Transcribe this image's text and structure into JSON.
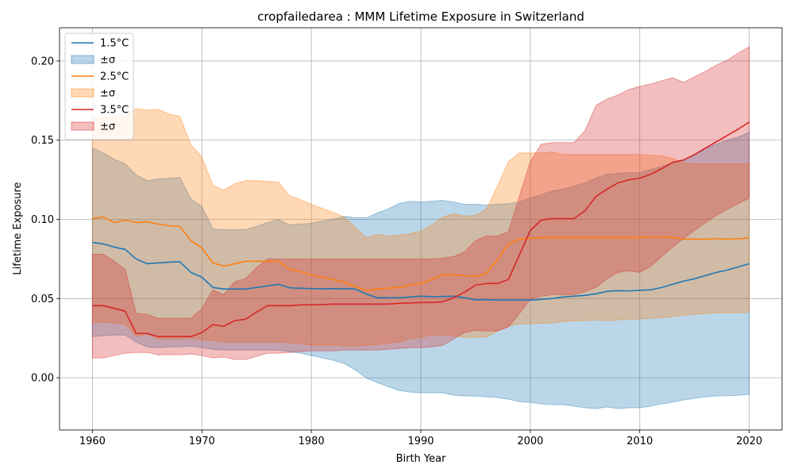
{
  "chart_data": {
    "type": "line",
    "title": "cropfailedarea : MMM Lifetime Exposure in Switzerland",
    "xlabel": "Birth Year",
    "ylabel": "Lifetime Exposure",
    "xlim": [
      1957,
      2023
    ],
    "ylim": [
      -0.033,
      0.221
    ],
    "xticks": [
      1960,
      1970,
      1980,
      1990,
      2000,
      2010,
      2020
    ],
    "xtick_labels": [
      "1960",
      "1970",
      "1980",
      "1990",
      "2000",
      "2010",
      "2020"
    ],
    "yticks": [
      0.0,
      0.05,
      0.1,
      0.15,
      0.2
    ],
    "ytick_labels": [
      "0.00",
      "0.05",
      "0.10",
      "0.15",
      "0.20"
    ],
    "grid": true,
    "legend_position": "top-left",
    "x": [
      1960,
      1961,
      1962,
      1963,
      1964,
      1965,
      1966,
      1967,
      1968,
      1969,
      1970,
      1971,
      1972,
      1973,
      1974,
      1975,
      1976,
      1977,
      1978,
      1979,
      1980,
      1981,
      1982,
      1983,
      1984,
      1985,
      1986,
      1987,
      1988,
      1989,
      1990,
      1991,
      1992,
      1993,
      1994,
      1995,
      1996,
      1997,
      1998,
      1999,
      2000,
      2001,
      2002,
      2003,
      2004,
      2005,
      2006,
      2007,
      2008,
      2009,
      2010,
      2011,
      2012,
      2013,
      2014,
      2015,
      2016,
      2017,
      2018,
      2019,
      2020
    ],
    "series": [
      {
        "name": "1.5°C",
        "band_label": "±σ",
        "color": "#1f77b4",
        "values": [
          0.0855,
          0.0845,
          0.0825,
          0.081,
          0.075,
          0.072,
          0.0725,
          0.073,
          0.0732,
          0.0665,
          0.0635,
          0.057,
          0.056,
          0.056,
          0.056,
          0.057,
          0.058,
          0.059,
          0.0568,
          0.0565,
          0.0563,
          0.0562,
          0.0563,
          0.0562,
          0.056,
          0.053,
          0.0505,
          0.0505,
          0.0505,
          0.051,
          0.0515,
          0.0512,
          0.0513,
          0.0515,
          0.0505,
          0.0492,
          0.0493,
          0.049,
          0.049,
          0.049,
          0.049,
          0.0495,
          0.05,
          0.051,
          0.0515,
          0.052,
          0.053,
          0.0545,
          0.055,
          0.0548,
          0.0552,
          0.0555,
          0.057,
          0.059,
          0.061,
          0.0625,
          0.0645,
          0.0665,
          0.068,
          0.07,
          0.072
        ],
        "upper": [
          0.145,
          0.142,
          0.138,
          0.135,
          0.128,
          0.1245,
          0.1255,
          0.126,
          0.1265,
          0.113,
          0.108,
          0.094,
          0.0935,
          0.0935,
          0.0935,
          0.0955,
          0.098,
          0.1,
          0.0965,
          0.097,
          0.0975,
          0.099,
          0.1,
          0.102,
          0.101,
          0.101,
          0.104,
          0.1065,
          0.11,
          0.1115,
          0.111,
          0.1115,
          0.112,
          0.111,
          0.1095,
          0.1095,
          0.109,
          0.1095,
          0.11,
          0.111,
          0.1135,
          0.1155,
          0.118,
          0.119,
          0.121,
          0.123,
          0.126,
          0.1285,
          0.129,
          0.1295,
          0.1295,
          0.1315,
          0.1335,
          0.1355,
          0.1375,
          0.1405,
          0.1445,
          0.1475,
          0.15,
          0.152,
          0.155
        ],
        "lower": [
          0.026,
          0.0265,
          0.027,
          0.027,
          0.0225,
          0.0195,
          0.019,
          0.0195,
          0.0195,
          0.02,
          0.019,
          0.018,
          0.0175,
          0.0175,
          0.0175,
          0.0175,
          0.0175,
          0.0175,
          0.0165,
          0.0155,
          0.014,
          0.0125,
          0.011,
          0.009,
          0.005,
          0.0,
          -0.003,
          -0.0055,
          -0.008,
          -0.009,
          -0.0095,
          -0.0095,
          -0.0095,
          -0.011,
          -0.0115,
          -0.0115,
          -0.012,
          -0.0125,
          -0.0135,
          -0.015,
          -0.0155,
          -0.0165,
          -0.017,
          -0.017,
          -0.018,
          -0.019,
          -0.0195,
          -0.0185,
          -0.0195,
          -0.019,
          -0.019,
          -0.018,
          -0.0165,
          -0.0155,
          -0.014,
          -0.013,
          -0.012,
          -0.0115,
          -0.0113,
          -0.011,
          -0.0105
        ]
      },
      {
        "name": "2.5°C",
        "band_label": "±σ",
        "color": "#ff7f0e",
        "values": [
          0.1005,
          0.1015,
          0.098,
          0.0995,
          0.098,
          0.0985,
          0.097,
          0.096,
          0.0955,
          0.0865,
          0.082,
          0.0725,
          0.0705,
          0.072,
          0.0735,
          0.0735,
          0.0735,
          0.0735,
          0.0685,
          0.067,
          0.065,
          0.0635,
          0.062,
          0.0605,
          0.0575,
          0.055,
          0.056,
          0.0565,
          0.057,
          0.0585,
          0.0595,
          0.062,
          0.065,
          0.065,
          0.0645,
          0.064,
          0.066,
          0.0745,
          0.0845,
          0.0875,
          0.088,
          0.0885,
          0.0885,
          0.0885,
          0.0885,
          0.0885,
          0.0885,
          0.0885,
          0.0885,
          0.0885,
          0.0885,
          0.0888,
          0.0888,
          0.0885,
          0.0875,
          0.0875,
          0.0875,
          0.0878,
          0.0875,
          0.0878,
          0.0882
        ],
        "upper": [
          0.1635,
          0.1645,
          0.165,
          0.166,
          0.17,
          0.169,
          0.1695,
          0.1665,
          0.165,
          0.147,
          0.1395,
          0.1215,
          0.1185,
          0.1225,
          0.1245,
          0.1245,
          0.124,
          0.1235,
          0.115,
          0.1125,
          0.1095,
          0.107,
          0.1045,
          0.1015,
          0.095,
          0.0885,
          0.0905,
          0.0895,
          0.09,
          0.091,
          0.0925,
          0.0965,
          0.1015,
          0.1035,
          0.102,
          0.1025,
          0.1065,
          0.121,
          0.1365,
          0.142,
          0.142,
          0.142,
          0.1425,
          0.141,
          0.141,
          0.141,
          0.141,
          0.141,
          0.141,
          0.141,
          0.141,
          0.1405,
          0.14,
          0.1385,
          0.1355,
          0.135,
          0.135,
          0.135,
          0.135,
          0.135,
          0.135
        ],
        "lower": [
          0.035,
          0.035,
          0.0345,
          0.034,
          0.026,
          0.0275,
          0.0245,
          0.0245,
          0.0245,
          0.025,
          0.024,
          0.0235,
          0.0225,
          0.0225,
          0.0225,
          0.0225,
          0.0225,
          0.0225,
          0.022,
          0.0215,
          0.0205,
          0.0205,
          0.0205,
          0.02,
          0.02,
          0.0205,
          0.021,
          0.0215,
          0.0225,
          0.0245,
          0.0255,
          0.027,
          0.027,
          0.0265,
          0.0255,
          0.0255,
          0.0258,
          0.0295,
          0.0325,
          0.034,
          0.034,
          0.0345,
          0.0345,
          0.0355,
          0.036,
          0.036,
          0.0365,
          0.036,
          0.0365,
          0.037,
          0.037,
          0.0375,
          0.038,
          0.0385,
          0.0395,
          0.04,
          0.0405,
          0.041,
          0.041,
          0.041,
          0.0415
        ]
      },
      {
        "name": "3.5°C",
        "band_label": "±σ",
        "color": "#d62728",
        "values": [
          0.0455,
          0.0455,
          0.0438,
          0.042,
          0.028,
          0.028,
          0.026,
          0.026,
          0.026,
          0.026,
          0.0285,
          0.0335,
          0.0325,
          0.036,
          0.037,
          0.0415,
          0.0455,
          0.0455,
          0.0455,
          0.046,
          0.046,
          0.0462,
          0.0465,
          0.0465,
          0.0465,
          0.0465,
          0.0465,
          0.0465,
          0.047,
          0.0472,
          0.0475,
          0.0475,
          0.048,
          0.0505,
          0.054,
          0.0585,
          0.0595,
          0.0595,
          0.062,
          0.0775,
          0.093,
          0.0995,
          0.1005,
          0.1005,
          0.1005,
          0.1055,
          0.1145,
          0.119,
          0.123,
          0.125,
          0.126,
          0.1285,
          0.132,
          0.136,
          0.1375,
          0.141,
          0.145,
          0.149,
          0.153,
          0.157,
          0.1615
        ],
        "upper": [
          0.078,
          0.078,
          0.0735,
          0.0685,
          0.0405,
          0.04,
          0.0375,
          0.0375,
          0.0375,
          0.0375,
          0.0435,
          0.0555,
          0.0525,
          0.0605,
          0.0625,
          0.0695,
          0.075,
          0.075,
          0.075,
          0.075,
          0.075,
          0.075,
          0.075,
          0.075,
          0.075,
          0.075,
          0.075,
          0.075,
          0.075,
          0.075,
          0.075,
          0.075,
          0.0755,
          0.0765,
          0.0795,
          0.0865,
          0.0895,
          0.0895,
          0.092,
          0.1145,
          0.1365,
          0.1475,
          0.1485,
          0.1485,
          0.1485,
          0.156,
          0.172,
          0.176,
          0.1785,
          0.182,
          0.184,
          0.1855,
          0.1875,
          0.1895,
          0.1865,
          0.19,
          0.1935,
          0.1975,
          0.2005,
          0.205,
          0.209
        ],
        "lower": [
          0.0125,
          0.0125,
          0.014,
          0.0155,
          0.016,
          0.016,
          0.0145,
          0.0145,
          0.0145,
          0.015,
          0.014,
          0.0125,
          0.013,
          0.0115,
          0.0115,
          0.0135,
          0.0155,
          0.0155,
          0.016,
          0.0165,
          0.017,
          0.017,
          0.017,
          0.0175,
          0.0175,
          0.0175,
          0.0175,
          0.018,
          0.0185,
          0.019,
          0.019,
          0.0195,
          0.0205,
          0.0245,
          0.0285,
          0.03,
          0.0295,
          0.0295,
          0.032,
          0.0405,
          0.0495,
          0.0515,
          0.0525,
          0.0525,
          0.0525,
          0.0545,
          0.057,
          0.0625,
          0.0665,
          0.0675,
          0.0665,
          0.0705,
          0.0765,
          0.0825,
          0.088,
          0.093,
          0.098,
          0.1025,
          0.1065,
          0.11,
          0.1135
        ]
      }
    ]
  }
}
